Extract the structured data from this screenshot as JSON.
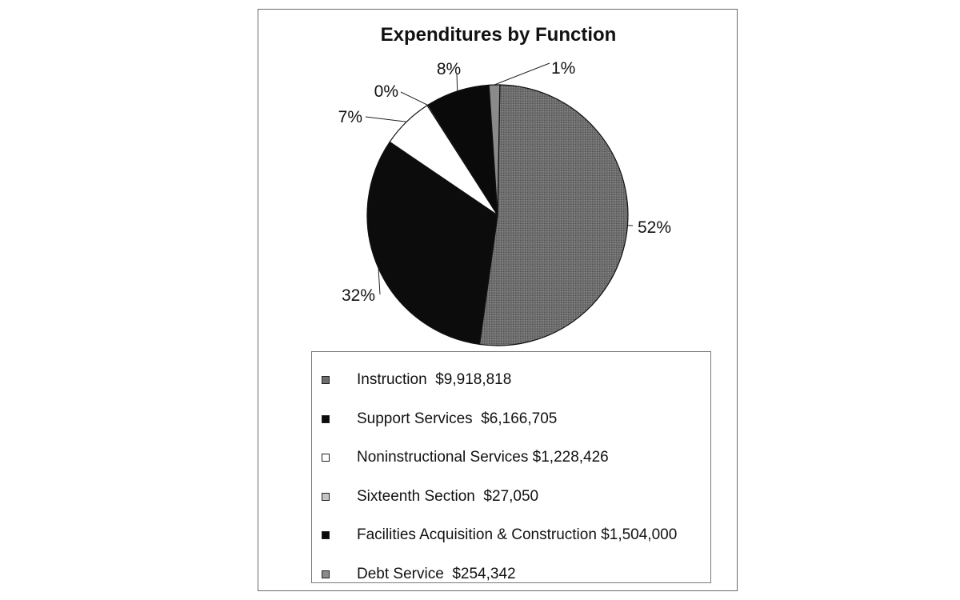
{
  "chart_data": {
    "type": "pie",
    "title": "Expenditures by Function",
    "slices": [
      {
        "name": "Instruction",
        "label": "Instruction  $9,918,818",
        "value": 9918818,
        "pct_label": "52%",
        "color": "#6e6e6e"
      },
      {
        "name": "Support Services",
        "label": "Support Services  $6,166,705",
        "value": 6166705,
        "pct_label": "32%",
        "color": "#0c0c0c"
      },
      {
        "name": "Noninstructional Services",
        "label": "Noninstructional Services $1,228,426",
        "value": 1228426,
        "pct_label": "7%",
        "color": "#ffffff"
      },
      {
        "name": "Sixteenth Section",
        "label": "Sixteenth Section  $27,050",
        "value": 27050,
        "pct_label": "0%",
        "color": "#c4c4c4"
      },
      {
        "name": "Facilities Acquisition & Construction",
        "label": "Facilities Acquisition & Construction $1,504,000",
        "value": 1504000,
        "pct_label": "8%",
        "color": "#0a0a0a"
      },
      {
        "name": "Debt Service",
        "label": "Debt Service  $254,342",
        "value": 254342,
        "pct_label": "1%",
        "color": "#8a8a8a"
      }
    ],
    "legend_placement": "bottom"
  }
}
